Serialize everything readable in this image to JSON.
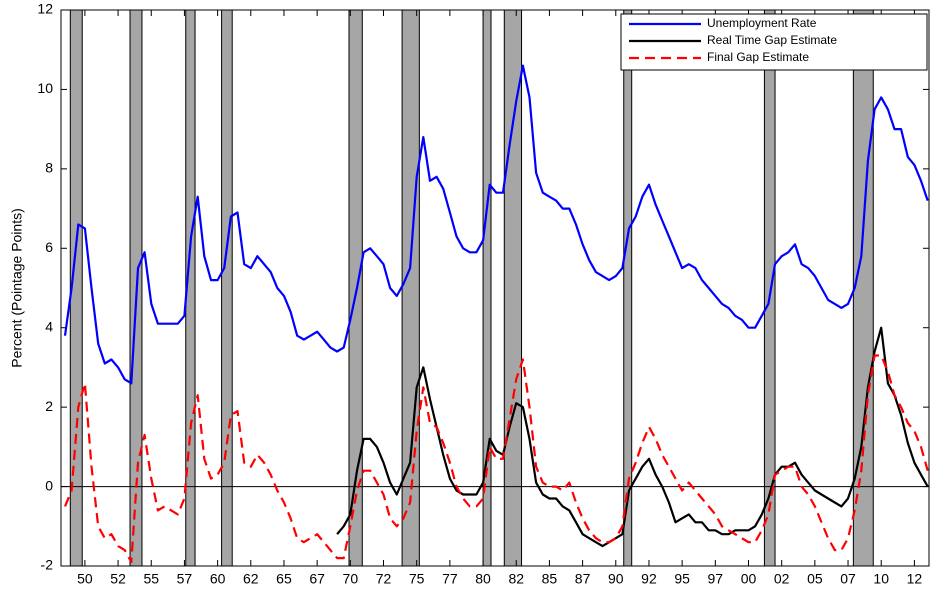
{
  "chart_data": {
    "type": "line",
    "y_label": "Percent (Pointage Points)",
    "xlim": [
      1948.2,
      2013.6
    ],
    "ylim": [
      -2,
      12
    ],
    "xticks": [
      {
        "value": 1950,
        "label": "50"
      },
      {
        "value": 1952.5,
        "label": "52"
      },
      {
        "value": 1955,
        "label": "55"
      },
      {
        "value": 1957.5,
        "label": "57"
      },
      {
        "value": 1960,
        "label": "60"
      },
      {
        "value": 1962.5,
        "label": "62"
      },
      {
        "value": 1965,
        "label": "65"
      },
      {
        "value": 1967.5,
        "label": "67"
      },
      {
        "value": 1970,
        "label": "70"
      },
      {
        "value": 1972.5,
        "label": "72"
      },
      {
        "value": 1975,
        "label": "75"
      },
      {
        "value": 1977.5,
        "label": "77"
      },
      {
        "value": 1980,
        "label": "80"
      },
      {
        "value": 1982.5,
        "label": "82"
      },
      {
        "value": 1985,
        "label": "85"
      },
      {
        "value": 1987.5,
        "label": "87"
      },
      {
        "value": 1990,
        "label": "90"
      },
      {
        "value": 1992.5,
        "label": "92"
      },
      {
        "value": 1995,
        "label": "95"
      },
      {
        "value": 1997.5,
        "label": "97"
      },
      {
        "value": 2000,
        "label": "00"
      },
      {
        "value": 2002.5,
        "label": "02"
      },
      {
        "value": 2005,
        "label": "05"
      },
      {
        "value": 2007.5,
        "label": "07"
      },
      {
        "value": 2010,
        "label": "10"
      },
      {
        "value": 2012.5,
        "label": "12"
      }
    ],
    "yticks": [
      -2,
      0,
      2,
      4,
      6,
      8,
      10,
      12
    ],
    "zero_line": true,
    "legend": "upper right",
    "shaded_color": "#a6a6a6",
    "shaded_x": [
      [
        1948.9,
        1949.8
      ],
      [
        1953.4,
        1954.3
      ],
      [
        1957.6,
        1958.3
      ],
      [
        1960.3,
        1961.1
      ],
      [
        1969.9,
        1970.9
      ],
      [
        1973.9,
        1975.2
      ],
      [
        1980.0,
        1980.6
      ],
      [
        1981.6,
        1982.9
      ],
      [
        1990.6,
        1991.2
      ],
      [
        2001.2,
        2002.0
      ],
      [
        2007.9,
        2009.4
      ]
    ],
    "x": [
      1948.5,
      1949,
      1949.5,
      1950,
      1950.5,
      1951,
      1951.5,
      1952,
      1952.5,
      1953,
      1953.5,
      1954,
      1954.5,
      1955,
      1955.5,
      1956,
      1956.5,
      1957,
      1957.5,
      1958,
      1958.5,
      1959,
      1959.5,
      1960,
      1960.5,
      1961,
      1961.5,
      1962,
      1962.5,
      1963,
      1963.5,
      1964,
      1964.5,
      1965,
      1965.5,
      1966,
      1966.5,
      1967,
      1967.5,
      1968,
      1968.5,
      1969,
      1969.5,
      1970,
      1970.5,
      1971,
      1971.5,
      1972,
      1972.5,
      1973,
      1973.5,
      1974,
      1974.5,
      1975,
      1975.5,
      1976,
      1976.5,
      1977,
      1977.5,
      1978,
      1978.5,
      1979,
      1979.5,
      1980,
      1980.5,
      1981,
      1981.5,
      1982,
      1982.5,
      1983,
      1983.5,
      1984,
      1984.5,
      1985,
      1985.5,
      1986,
      1986.5,
      1987,
      1987.5,
      1988,
      1988.5,
      1989,
      1989.5,
      1990,
      1990.5,
      1991,
      1991.5,
      1992,
      1992.5,
      1993,
      1993.5,
      1994,
      1994.5,
      1995,
      1995.5,
      1996,
      1996.5,
      1997,
      1997.5,
      1998,
      1998.5,
      1999,
      1999.5,
      2000,
      2000.5,
      2001,
      2001.5,
      2002,
      2002.5,
      2003,
      2003.5,
      2004,
      2004.5,
      2005,
      2005.5,
      2006,
      2006.5,
      2007,
      2007.5,
      2008,
      2008.5,
      2009,
      2009.5,
      2010,
      2010.5,
      2011,
      2011.5,
      2012,
      2012.5,
      2013,
      2013.5
    ],
    "series": [
      {
        "name": "Unemployment Rate",
        "color": "#0000ff",
        "dash": "solid",
        "values": [
          3.8,
          5.0,
          6.6,
          6.5,
          5.0,
          3.6,
          3.1,
          3.2,
          3.0,
          2.7,
          2.6,
          5.5,
          5.9,
          4.6,
          4.1,
          4.1,
          4.1,
          4.1,
          4.3,
          6.3,
          7.3,
          5.8,
          5.2,
          5.2,
          5.5,
          6.8,
          6.9,
          5.6,
          5.5,
          5.8,
          5.6,
          5.4,
          5.0,
          4.8,
          4.4,
          3.8,
          3.7,
          3.8,
          3.9,
          3.7,
          3.5,
          3.4,
          3.5,
          4.2,
          5.0,
          5.9,
          6.0,
          5.8,
          5.6,
          5.0,
          4.8,
          5.1,
          5.5,
          7.8,
          8.8,
          7.7,
          7.8,
          7.5,
          6.9,
          6.3,
          6.0,
          5.9,
          5.9,
          6.2,
          7.6,
          7.4,
          7.4,
          8.6,
          9.7,
          10.6,
          9.8,
          7.9,
          7.4,
          7.3,
          7.2,
          7.0,
          7.0,
          6.6,
          6.1,
          5.7,
          5.4,
          5.3,
          5.2,
          5.3,
          5.5,
          6.5,
          6.8,
          7.3,
          7.6,
          7.1,
          6.7,
          6.3,
          5.9,
          5.5,
          5.6,
          5.5,
          5.2,
          5.0,
          4.8,
          4.6,
          4.5,
          4.3,
          4.2,
          4.0,
          4.0,
          4.3,
          4.6,
          5.6,
          5.8,
          5.9,
          6.1,
          5.6,
          5.5,
          5.3,
          5.0,
          4.7,
          4.6,
          4.5,
          4.6,
          5.0,
          5.8,
          8.2,
          9.5,
          9.8,
          9.5,
          9.0,
          9.0,
          8.3,
          8.1,
          7.7,
          7.2
        ]
      },
      {
        "name": "Real Time Gap Estimate",
        "color": "#000000",
        "dash": "solid",
        "values": [
          null,
          null,
          null,
          null,
          null,
          null,
          null,
          null,
          null,
          null,
          null,
          null,
          null,
          null,
          null,
          null,
          null,
          null,
          null,
          null,
          null,
          null,
          null,
          null,
          null,
          null,
          null,
          null,
          null,
          null,
          null,
          null,
          null,
          null,
          null,
          null,
          null,
          null,
          null,
          null,
          null,
          -1.2,
          -1.0,
          -0.7,
          0.4,
          1.2,
          1.2,
          1.0,
          0.6,
          0.1,
          -0.2,
          0.2,
          0.6,
          2.5,
          3.0,
          2.2,
          1.5,
          0.8,
          0.2,
          -0.1,
          -0.2,
          -0.2,
          -0.2,
          0.1,
          1.2,
          0.9,
          0.8,
          1.5,
          2.1,
          2.0,
          1.2,
          0.1,
          -0.2,
          -0.3,
          -0.3,
          -0.5,
          -0.6,
          -0.9,
          -1.2,
          -1.3,
          -1.4,
          -1.5,
          -1.4,
          -1.3,
          -1.2,
          -0.1,
          0.2,
          0.5,
          0.7,
          0.3,
          0.0,
          -0.4,
          -0.9,
          -0.8,
          -0.7,
          -0.9,
          -0.9,
          -1.1,
          -1.1,
          -1.2,
          -1.2,
          -1.1,
          -1.1,
          -1.1,
          -1.0,
          -0.7,
          -0.3,
          0.3,
          0.5,
          0.5,
          0.6,
          0.3,
          0.1,
          -0.1,
          -0.2,
          -0.3,
          -0.4,
          -0.5,
          -0.3,
          0.2,
          1.0,
          2.5,
          3.4,
          4.0,
          2.6,
          2.3,
          1.8,
          1.1,
          0.6,
          0.3,
          0.0
        ]
      },
      {
        "name": "Final Gap Estimate",
        "color": "#ff0000",
        "dash": "dashed",
        "values": [
          -0.5,
          -0.1,
          2.0,
          2.6,
          0.5,
          -1.0,
          -1.3,
          -1.2,
          -1.5,
          -1.6,
          -1.9,
          0.6,
          1.3,
          0.2,
          -0.6,
          -0.5,
          -0.6,
          -0.7,
          -0.3,
          1.6,
          2.3,
          0.7,
          0.2,
          0.3,
          0.6,
          1.8,
          1.9,
          0.6,
          0.5,
          0.8,
          0.6,
          0.3,
          -0.1,
          -0.4,
          -0.8,
          -1.3,
          -1.4,
          -1.3,
          -1.2,
          -1.4,
          -1.6,
          -1.8,
          -1.8,
          -1.0,
          -0.1,
          0.4,
          0.4,
          0.1,
          -0.2,
          -0.8,
          -1.0,
          -0.8,
          -0.4,
          1.4,
          2.5,
          1.6,
          1.5,
          1.1,
          0.6,
          0.0,
          -0.3,
          -0.5,
          -0.5,
          -0.3,
          1.0,
          0.7,
          0.7,
          1.7,
          2.7,
          3.2,
          2.0,
          0.5,
          0.1,
          0.0,
          0.0,
          -0.1,
          0.1,
          -0.4,
          -0.8,
          -1.1,
          -1.3,
          -1.4,
          -1.4,
          -1.3,
          -1.0,
          0.2,
          0.6,
          1.1,
          1.5,
          1.2,
          0.8,
          0.5,
          0.2,
          -0.1,
          0.1,
          -0.1,
          -0.3,
          -0.5,
          -0.7,
          -1.0,
          -1.1,
          -1.2,
          -1.3,
          -1.4,
          -1.4,
          -1.1,
          -0.7,
          0.3,
          0.4,
          0.5,
          0.5,
          0.0,
          -0.2,
          -0.5,
          -0.9,
          -1.3,
          -1.6,
          -1.6,
          -1.3,
          -0.6,
          0.4,
          2.3,
          3.3,
          3.3,
          2.9,
          2.3,
          2.0,
          1.6,
          1.4,
          1.0,
          0.4
        ]
      }
    ]
  }
}
